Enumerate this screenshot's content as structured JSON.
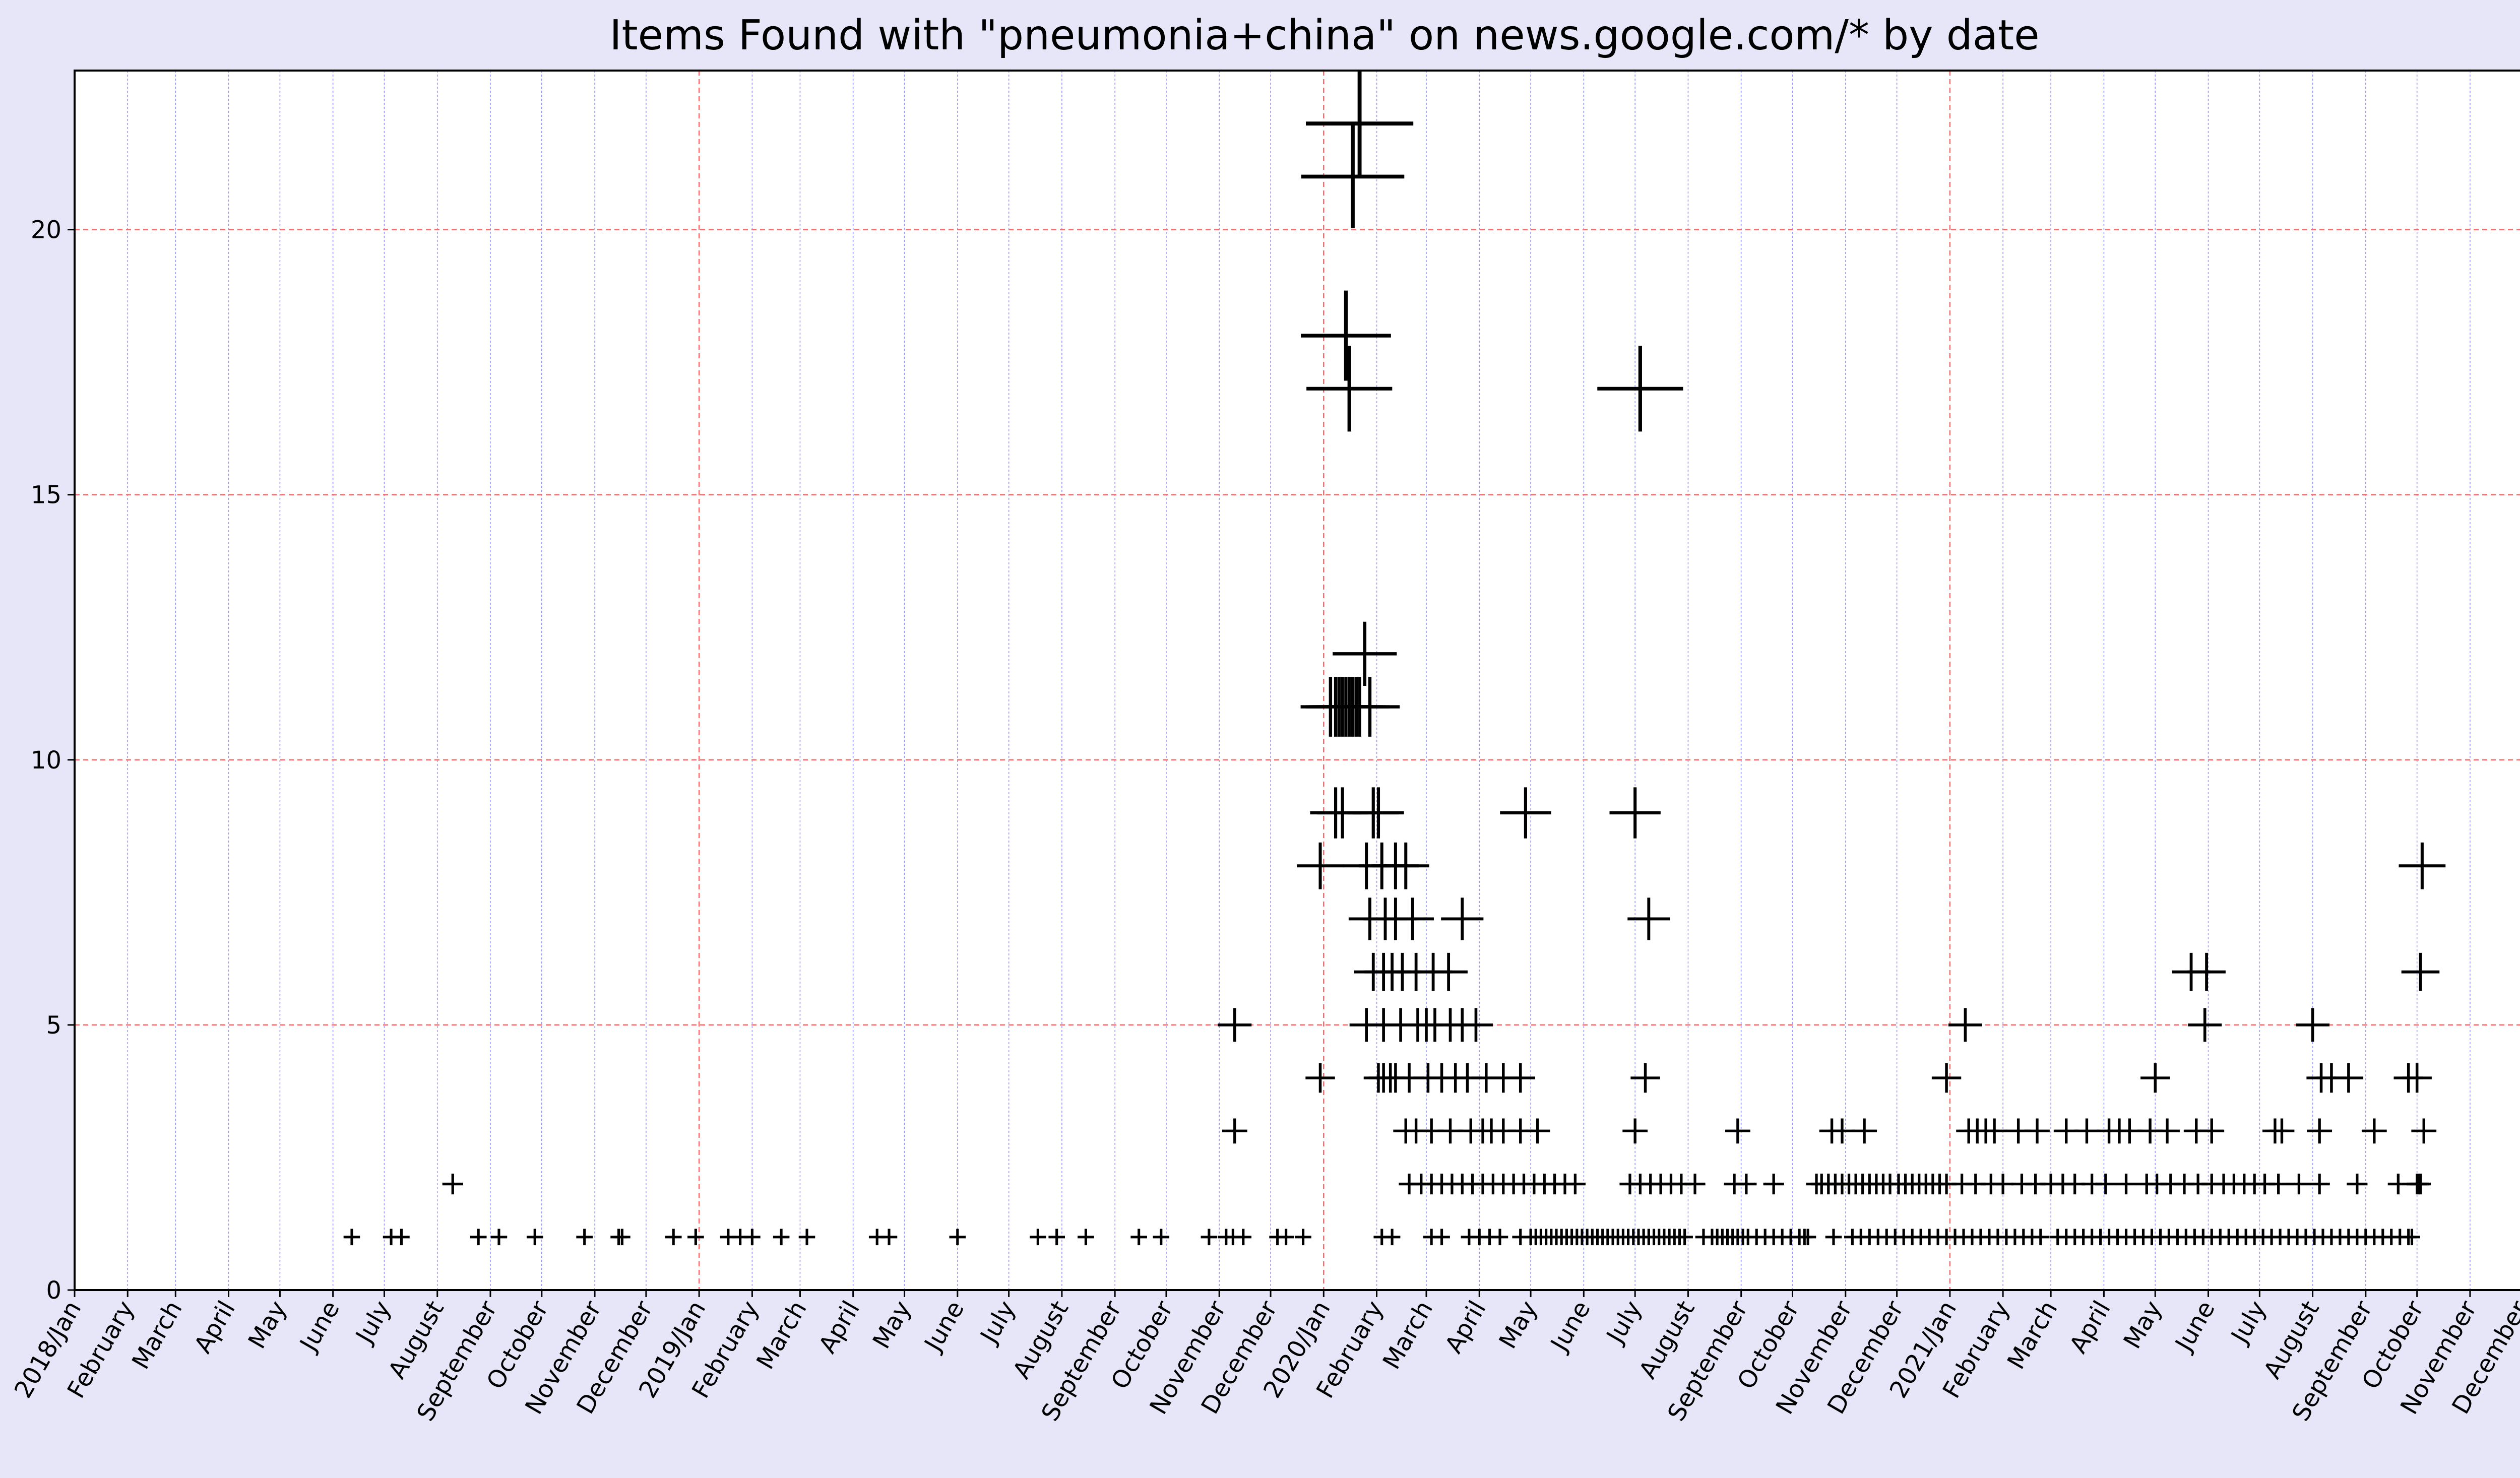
{
  "chart_data": {
    "type": "scatter",
    "title": "Items Found with \"pneumonia+china\" on news.google.com/* by date",
    "xlabel": "",
    "ylabel": "",
    "x_range": [
      "2018-01-01",
      "2021-12-31"
    ],
    "ylim": [
      0,
      23
    ],
    "y_ticks": [
      0,
      5,
      10,
      15,
      20
    ],
    "marker": "+",
    "marker_size_scales_with_value": true,
    "grid": {
      "month_lines": "dotted blue",
      "year_lines": "dashed red",
      "y_lines": "dashed red"
    },
    "x_tick_labels": [
      "2018/Jan",
      "February",
      "March",
      "April",
      "May",
      "June",
      "July",
      "August",
      "September",
      "October",
      "November",
      "December",
      "2019/Jan",
      "February",
      "March",
      "April",
      "May",
      "June",
      "July",
      "August",
      "September",
      "October",
      "November",
      "December",
      "2020/Jan",
      "February",
      "March",
      "April",
      "May",
      "June",
      "July",
      "August",
      "September",
      "October",
      "November",
      "December",
      "2021/Jan",
      "February",
      "March",
      "April",
      "May",
      "June",
      "July",
      "August",
      "September",
      "October",
      "November",
      "December"
    ],
    "points": [
      [
        "2018-06-12",
        1
      ],
      [
        "2018-07-05",
        1
      ],
      [
        "2018-07-11",
        1
      ],
      [
        "2018-08-10",
        2
      ],
      [
        "2018-08-25",
        1
      ],
      [
        "2018-09-06",
        1
      ],
      [
        "2018-09-27",
        1
      ],
      [
        "2018-10-26",
        1
      ],
      [
        "2018-11-15",
        1
      ],
      [
        "2018-11-17",
        1
      ],
      [
        "2018-12-17",
        1
      ],
      [
        "2018-12-30",
        1
      ],
      [
        "2019-01-18",
        1
      ],
      [
        "2019-01-25",
        1
      ],
      [
        "2019-02-01",
        1
      ],
      [
        "2019-02-18",
        1
      ],
      [
        "2019-03-05",
        1
      ],
      [
        "2019-04-15",
        1
      ],
      [
        "2019-04-22",
        1
      ],
      [
        "2019-06-01",
        1
      ],
      [
        "2019-07-18",
        1
      ],
      [
        "2019-07-29",
        1
      ],
      [
        "2019-08-15",
        1
      ],
      [
        "2019-09-15",
        1
      ],
      [
        "2019-09-28",
        1
      ],
      [
        "2019-10-26",
        1
      ],
      [
        "2019-11-05",
        1
      ],
      [
        "2019-11-09",
        1
      ],
      [
        "2019-11-15",
        1
      ],
      [
        "2019-11-10",
        3
      ],
      [
        "2019-11-10",
        5
      ],
      [
        "2019-12-05",
        1
      ],
      [
        "2019-12-10",
        1
      ],
      [
        "2019-12-20",
        1
      ],
      [
        "2019-12-30",
        4
      ],
      [
        "2019-12-30",
        8
      ],
      [
        "2020-01-08",
        9
      ],
      [
        "2020-01-12",
        9
      ],
      [
        "2020-01-16",
        17
      ],
      [
        "2020-01-14",
        18
      ],
      [
        "2020-01-18",
        21
      ],
      [
        "2020-01-22",
        22
      ],
      [
        "2020-01-25",
        12
      ],
      [
        "2020-01-28",
        11
      ],
      [
        "2020-01-05",
        11
      ],
      [
        "2020-01-08",
        11
      ],
      [
        "2020-01-10",
        11
      ],
      [
        "2020-01-12",
        11
      ],
      [
        "2020-01-14",
        11
      ],
      [
        "2020-01-16",
        11
      ],
      [
        "2020-01-18",
        11
      ],
      [
        "2020-01-20",
        11
      ],
      [
        "2020-01-22",
        11
      ],
      [
        "2020-01-30",
        9
      ],
      [
        "2020-02-02",
        9
      ],
      [
        "2020-01-26",
        8
      ],
      [
        "2020-02-04",
        8
      ],
      [
        "2020-02-12",
        8
      ],
      [
        "2020-02-18",
        8
      ],
      [
        "2020-01-28",
        7
      ],
      [
        "2020-02-06",
        7
      ],
      [
        "2020-02-12",
        7
      ],
      [
        "2020-02-22",
        7
      ],
      [
        "2020-03-22",
        7
      ],
      [
        "2020-01-30",
        6
      ],
      [
        "2020-02-05",
        6
      ],
      [
        "2020-02-10",
        6
      ],
      [
        "2020-02-16",
        6
      ],
      [
        "2020-02-24",
        6
      ],
      [
        "2020-03-05",
        6
      ],
      [
        "2020-03-14",
        6
      ],
      [
        "2020-01-26",
        5
      ],
      [
        "2020-02-05",
        5
      ],
      [
        "2020-02-15",
        5
      ],
      [
        "2020-02-25",
        5
      ],
      [
        "2020-03-01",
        5
      ],
      [
        "2020-03-06",
        5
      ],
      [
        "2020-03-15",
        5
      ],
      [
        "2020-03-22",
        5
      ],
      [
        "2020-03-30",
        5
      ],
      [
        "2020-02-02",
        4
      ],
      [
        "2020-02-05",
        4
      ],
      [
        "2020-02-09",
        4
      ],
      [
        "2020-02-12",
        4
      ],
      [
        "2020-02-20",
        4
      ],
      [
        "2020-03-02",
        4
      ],
      [
        "2020-03-10",
        4
      ],
      [
        "2020-03-18",
        4
      ],
      [
        "2020-03-25",
        4
      ],
      [
        "2020-04-05",
        4
      ],
      [
        "2020-04-15",
        4
      ],
      [
        "2020-04-25",
        4
      ],
      [
        "2020-02-18",
        3
      ],
      [
        "2020-02-24",
        3
      ],
      [
        "2020-03-04",
        3
      ],
      [
        "2020-03-15",
        3
      ],
      [
        "2020-03-27",
        3
      ],
      [
        "2020-04-03",
        3
      ],
      [
        "2020-04-08",
        3
      ],
      [
        "2020-04-15",
        3
      ],
      [
        "2020-04-25",
        3
      ],
      [
        "2020-05-05",
        3
      ],
      [
        "2020-02-20",
        2
      ],
      [
        "2020-02-27",
        2
      ],
      [
        "2020-03-04",
        2
      ],
      [
        "2020-03-10",
        2
      ],
      [
        "2020-03-16",
        2
      ],
      [
        "2020-03-22",
        2
      ],
      [
        "2020-03-28",
        2
      ],
      [
        "2020-04-03",
        2
      ],
      [
        "2020-04-09",
        2
      ],
      [
        "2020-04-15",
        2
      ],
      [
        "2020-04-21",
        2
      ],
      [
        "2020-04-27",
        2
      ],
      [
        "2020-05-03",
        2
      ],
      [
        "2020-05-09",
        2
      ],
      [
        "2020-05-15",
        2
      ],
      [
        "2020-05-21",
        2
      ],
      [
        "2020-05-27",
        2
      ],
      [
        "2020-02-04",
        1
      ],
      [
        "2020-02-10",
        1
      ],
      [
        "2020-03-04",
        1
      ],
      [
        "2020-03-10",
        1
      ],
      [
        "2020-03-26",
        1
      ],
      [
        "2020-04-01",
        1
      ],
      [
        "2020-04-07",
        1
      ],
      [
        "2020-04-13",
        1
      ],
      [
        "2020-04-25",
        1
      ],
      [
        "2020-05-01",
        1
      ],
      [
        "2020-05-04",
        1
      ],
      [
        "2020-05-07",
        1
      ],
      [
        "2020-05-10",
        1
      ],
      [
        "2020-05-13",
        1
      ],
      [
        "2020-05-16",
        1
      ],
      [
        "2020-05-19",
        1
      ],
      [
        "2020-05-22",
        1
      ],
      [
        "2020-05-25",
        1
      ],
      [
        "2020-05-28",
        1
      ],
      [
        "2020-05-31",
        1
      ],
      [
        "2020-06-03",
        1
      ],
      [
        "2020-06-06",
        1
      ],
      [
        "2020-06-09",
        1
      ],
      [
        "2020-06-12",
        1
      ],
      [
        "2020-06-15",
        1
      ],
      [
        "2020-06-18",
        1
      ],
      [
        "2020-06-21",
        1
      ],
      [
        "2020-06-24",
        1
      ],
      [
        "2020-06-27",
        1
      ],
      [
        "2020-06-30",
        1
      ],
      [
        "2020-07-03",
        1
      ],
      [
        "2020-07-06",
        1
      ],
      [
        "2020-07-09",
        1
      ],
      [
        "2020-07-12",
        1
      ],
      [
        "2020-07-15",
        1
      ],
      [
        "2020-07-18",
        1
      ],
      [
        "2020-07-21",
        1
      ],
      [
        "2020-07-24",
        1
      ],
      [
        "2020-07-27",
        1
      ],
      [
        "2020-07-30",
        1
      ],
      [
        "2020-04-28",
        9
      ],
      [
        "2020-07-01",
        9
      ],
      [
        "2020-07-04",
        17
      ],
      [
        "2020-07-09",
        7
      ],
      [
        "2020-07-07",
        4
      ],
      [
        "2020-07-01",
        3
      ],
      [
        "2020-06-28",
        2
      ],
      [
        "2020-07-04",
        2
      ],
      [
        "2020-07-10",
        2
      ],
      [
        "2020-07-16",
        2
      ],
      [
        "2020-07-22",
        2
      ],
      [
        "2020-07-28",
        2
      ],
      [
        "2020-08-05",
        2
      ],
      [
        "2020-08-10",
        1
      ],
      [
        "2020-08-15",
        1
      ],
      [
        "2020-08-18",
        1
      ],
      [
        "2020-08-21",
        1
      ],
      [
        "2020-08-24",
        1
      ],
      [
        "2020-08-27",
        1
      ],
      [
        "2020-08-30",
        1
      ],
      [
        "2020-09-02",
        1
      ],
      [
        "2020-09-05",
        1
      ],
      [
        "2020-09-10",
        1
      ],
      [
        "2020-09-15",
        1
      ],
      [
        "2020-09-20",
        1
      ],
      [
        "2020-09-25",
        1
      ],
      [
        "2020-09-30",
        1
      ],
      [
        "2020-10-05",
        1
      ],
      [
        "2020-10-08",
        1
      ],
      [
        "2020-10-10",
        1
      ],
      [
        "2020-08-30",
        3
      ],
      [
        "2020-08-28",
        2
      ],
      [
        "2020-09-04",
        2
      ],
      [
        "2020-09-20",
        2
      ],
      [
        "2020-10-15",
        2
      ],
      [
        "2020-10-18",
        2
      ],
      [
        "2020-10-22",
        2
      ],
      [
        "2020-10-26",
        2
      ],
      [
        "2020-10-30",
        2
      ],
      [
        "2020-11-03",
        2
      ],
      [
        "2020-11-07",
        2
      ],
      [
        "2020-11-11",
        2
      ],
      [
        "2020-11-15",
        2
      ],
      [
        "2020-11-19",
        2
      ],
      [
        "2020-11-23",
        2
      ],
      [
        "2020-11-27",
        2
      ],
      [
        "2020-12-02",
        2
      ],
      [
        "2020-12-06",
        2
      ],
      [
        "2020-12-10",
        2
      ],
      [
        "2020-12-14",
        2
      ],
      [
        "2020-12-18",
        2
      ],
      [
        "2020-12-22",
        2
      ],
      [
        "2020-12-26",
        2
      ],
      [
        "2020-12-30",
        2
      ],
      [
        "2020-10-24",
        3
      ],
      [
        "2020-10-30",
        3
      ],
      [
        "2020-11-12",
        3
      ],
      [
        "2020-12-30",
        4
      ],
      [
        "2021-01-10",
        5
      ],
      [
        "2020-10-25",
        1
      ],
      [
        "2020-11-05",
        1
      ],
      [
        "2020-11-10",
        1
      ],
      [
        "2020-11-15",
        1
      ],
      [
        "2020-11-20",
        1
      ],
      [
        "2020-11-25",
        1
      ],
      [
        "2020-11-30",
        1
      ],
      [
        "2020-12-05",
        1
      ],
      [
        "2020-12-10",
        1
      ],
      [
        "2020-12-15",
        1
      ],
      [
        "2020-12-20",
        1
      ],
      [
        "2020-12-25",
        1
      ],
      [
        "2020-12-30",
        1
      ],
      [
        "2021-01-04",
        1
      ],
      [
        "2021-01-09",
        1
      ],
      [
        "2021-01-14",
        1
      ],
      [
        "2021-01-19",
        1
      ],
      [
        "2021-01-24",
        1
      ],
      [
        "2021-01-29",
        1
      ],
      [
        "2021-02-03",
        1
      ],
      [
        "2021-02-08",
        1
      ],
      [
        "2021-02-13",
        1
      ],
      [
        "2021-02-18",
        1
      ],
      [
        "2021-02-23",
        1
      ],
      [
        "2021-01-12",
        3
      ],
      [
        "2021-01-17",
        3
      ],
      [
        "2021-01-22",
        3
      ],
      [
        "2021-01-27",
        3
      ],
      [
        "2021-02-10",
        3
      ],
      [
        "2021-02-21",
        3
      ],
      [
        "2021-01-08",
        2
      ],
      [
        "2021-01-16",
        2
      ],
      [
        "2021-01-25",
        2
      ],
      [
        "2021-02-01",
        2
      ],
      [
        "2021-02-12",
        2
      ],
      [
        "2021-02-20",
        2
      ],
      [
        "2021-03-01",
        2
      ],
      [
        "2021-03-08",
        2
      ],
      [
        "2021-03-15",
        2
      ],
      [
        "2021-03-25",
        2
      ],
      [
        "2021-03-10",
        3
      ],
      [
        "2021-03-22",
        3
      ],
      [
        "2021-04-04",
        3
      ],
      [
        "2021-04-10",
        3
      ],
      [
        "2021-04-16",
        3
      ],
      [
        "2021-04-28",
        3
      ],
      [
        "2021-05-08",
        3
      ],
      [
        "2021-04-02",
        2
      ],
      [
        "2021-04-14",
        2
      ],
      [
        "2021-04-26",
        2
      ],
      [
        "2021-05-02",
        2
      ],
      [
        "2021-05-10",
        2
      ],
      [
        "2021-05-18",
        2
      ],
      [
        "2021-05-26",
        2
      ],
      [
        "2021-06-03",
        2
      ],
      [
        "2021-06-10",
        2
      ],
      [
        "2021-06-16",
        2
      ],
      [
        "2021-06-22",
        2
      ],
      [
        "2021-06-28",
        2
      ],
      [
        "2021-03-05",
        1
      ],
      [
        "2021-03-10",
        1
      ],
      [
        "2021-03-15",
        1
      ],
      [
        "2021-03-20",
        1
      ],
      [
        "2021-03-25",
        1
      ],
      [
        "2021-03-30",
        1
      ],
      [
        "2021-04-04",
        1
      ],
      [
        "2021-04-09",
        1
      ],
      [
        "2021-04-14",
        1
      ],
      [
        "2021-04-19",
        1
      ],
      [
        "2021-04-24",
        1
      ],
      [
        "2021-04-29",
        1
      ],
      [
        "2021-05-04",
        1
      ],
      [
        "2021-05-09",
        1
      ],
      [
        "2021-05-14",
        1
      ],
      [
        "2021-05-19",
        1
      ],
      [
        "2021-05-24",
        1
      ],
      [
        "2021-05-29",
        1
      ],
      [
        "2021-06-03",
        1
      ],
      [
        "2021-06-08",
        1
      ],
      [
        "2021-06-13",
        1
      ],
      [
        "2021-06-18",
        1
      ],
      [
        "2021-06-23",
        1
      ],
      [
        "2021-06-28",
        1
      ],
      [
        "2021-07-03",
        1
      ],
      [
        "2021-07-08",
        1
      ],
      [
        "2021-07-13",
        1
      ],
      [
        "2021-07-18",
        1
      ],
      [
        "2021-07-23",
        1
      ],
      [
        "2021-07-28",
        1
      ],
      [
        "2021-08-02",
        1
      ],
      [
        "2021-08-07",
        1
      ],
      [
        "2021-08-12",
        1
      ],
      [
        "2021-08-17",
        1
      ],
      [
        "2021-08-22",
        1
      ],
      [
        "2021-08-27",
        1
      ],
      [
        "2021-09-01",
        1
      ],
      [
        "2021-09-06",
        1
      ],
      [
        "2021-09-11",
        1
      ],
      [
        "2021-09-16",
        1
      ],
      [
        "2021-09-21",
        1
      ],
      [
        "2021-09-26",
        1
      ],
      [
        "2021-05-01",
        4
      ],
      [
        "2021-05-22",
        6
      ],
      [
        "2021-05-31",
        6
      ],
      [
        "2021-05-30",
        5
      ],
      [
        "2021-05-25",
        3
      ],
      [
        "2021-06-03",
        3
      ],
      [
        "2021-07-10",
        3
      ],
      [
        "2021-07-14",
        3
      ],
      [
        "2021-08-05",
        3
      ],
      [
        "2021-09-06",
        3
      ],
      [
        "2021-10-05",
        3
      ],
      [
        "2021-07-04",
        2
      ],
      [
        "2021-07-12",
        2
      ],
      [
        "2021-07-24",
        2
      ],
      [
        "2021-08-05",
        2
      ],
      [
        "2021-08-27",
        2
      ],
      [
        "2021-09-20",
        2
      ],
      [
        "2021-10-01",
        2
      ],
      [
        "2021-10-03",
        2
      ],
      [
        "2021-08-06",
        4
      ],
      [
        "2021-08-12",
        4
      ],
      [
        "2021-08-22",
        4
      ],
      [
        "2021-09-26",
        4
      ],
      [
        "2021-10-01",
        4
      ],
      [
        "2021-08-01",
        5
      ],
      [
        "2021-10-03",
        6
      ],
      [
        "2021-10-04",
        8
      ],
      [
        "2021-10-02",
        2
      ],
      [
        "2021-09-28",
        1
      ]
    ]
  }
}
